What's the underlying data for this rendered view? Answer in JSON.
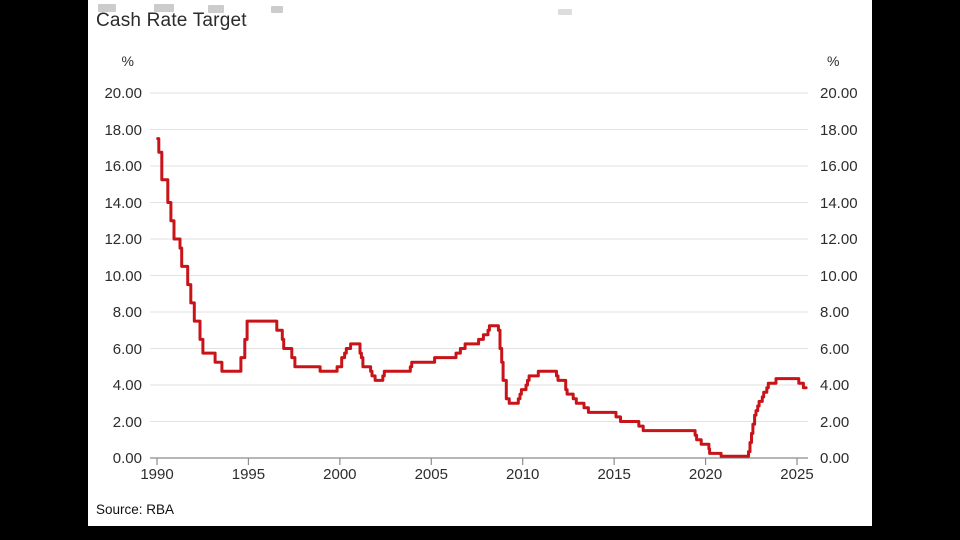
{
  "window": {
    "background_color": "#000000",
    "panel_color": "#ffffff"
  },
  "chart": {
    "title": "Cash Rate Target",
    "unit_left": "%",
    "unit_right": "%",
    "source": "Source: RBA"
  },
  "chart_data": {
    "type": "line",
    "step": "after",
    "title": "Cash Rate Target",
    "xlabel": "",
    "ylabel": "%",
    "xlim": [
      1989.6,
      2025.9
    ],
    "ylim": [
      0,
      20
    ],
    "grid": "horizontal",
    "legend": "none",
    "line_color": "#c81419",
    "grid_color": "#e2e2e2",
    "axis_color": "#8c8c8c",
    "text_color": "#2d2d2d",
    "y_tick_values": [
      20,
      18,
      16,
      14,
      12,
      10,
      8,
      6,
      4,
      2,
      0
    ],
    "y_tick_labels": [
      "20.00",
      "18.00",
      "16.00",
      "14.00",
      "12.00",
      "10.00",
      "8.00",
      "6.00",
      "4.00",
      "2.00",
      "0.00"
    ],
    "x_tick_values": [
      1990,
      1995,
      2000,
      2005,
      2010,
      2015,
      2020,
      2025
    ],
    "x_tick_labels": [
      "1990",
      "1995",
      "2000",
      "2005",
      "2010",
      "2015",
      "2020",
      "2025"
    ],
    "series": [
      {
        "name": "Cash Rate Target (%)",
        "points": [
          [
            1990.04,
            17.5
          ],
          [
            1990.1,
            16.75
          ],
          [
            1990.26,
            15.25
          ],
          [
            1990.59,
            14
          ],
          [
            1990.76,
            13
          ],
          [
            1990.93,
            12
          ],
          [
            1991.26,
            11.5
          ],
          [
            1991.35,
            10.5
          ],
          [
            1991.68,
            9.5
          ],
          [
            1991.85,
            8.5
          ],
          [
            1992.04,
            7.5
          ],
          [
            1992.35,
            6.5
          ],
          [
            1992.51,
            5.75
          ],
          [
            1993.18,
            5.25
          ],
          [
            1993.55,
            4.75
          ],
          [
            1994.59,
            5.5
          ],
          [
            1994.8,
            6.5
          ],
          [
            1994.93,
            7.5
          ],
          [
            1996.55,
            7
          ],
          [
            1996.85,
            6.5
          ],
          [
            1996.93,
            6
          ],
          [
            1997.37,
            5.5
          ],
          [
            1997.54,
            5
          ],
          [
            1998.92,
            4.75
          ],
          [
            1999.85,
            5
          ],
          [
            2000.1,
            5.5
          ],
          [
            2000.26,
            5.75
          ],
          [
            2000.35,
            6
          ],
          [
            2000.59,
            6.25
          ],
          [
            2001.1,
            5.75
          ],
          [
            2001.18,
            5.5
          ],
          [
            2001.26,
            5
          ],
          [
            2001.68,
            4.75
          ],
          [
            2001.76,
            4.5
          ],
          [
            2001.93,
            4.25
          ],
          [
            2002.35,
            4.5
          ],
          [
            2002.43,
            4.75
          ],
          [
            2003.85,
            5
          ],
          [
            2003.93,
            5.25
          ],
          [
            2005.18,
            5.5
          ],
          [
            2006.35,
            5.75
          ],
          [
            2006.59,
            6
          ],
          [
            2006.85,
            6.25
          ],
          [
            2007.59,
            6.5
          ],
          [
            2007.85,
            6.75
          ],
          [
            2008.1,
            7
          ],
          [
            2008.18,
            7.25
          ],
          [
            2008.67,
            7
          ],
          [
            2008.76,
            6
          ],
          [
            2008.85,
            5.25
          ],
          [
            2008.93,
            4.25
          ],
          [
            2009.1,
            3.25
          ],
          [
            2009.26,
            3
          ],
          [
            2009.76,
            3.25
          ],
          [
            2009.85,
            3.5
          ],
          [
            2009.93,
            3.75
          ],
          [
            2010.18,
            4
          ],
          [
            2010.26,
            4.25
          ],
          [
            2010.35,
            4.5
          ],
          [
            2010.85,
            4.75
          ],
          [
            2011.85,
            4.5
          ],
          [
            2011.93,
            4.25
          ],
          [
            2012.35,
            3.75
          ],
          [
            2012.43,
            3.5
          ],
          [
            2012.76,
            3.25
          ],
          [
            2012.93,
            3
          ],
          [
            2013.35,
            2.75
          ],
          [
            2013.59,
            2.5
          ],
          [
            2015.1,
            2.25
          ],
          [
            2015.35,
            2
          ],
          [
            2016.35,
            1.75
          ],
          [
            2016.59,
            1.5
          ],
          [
            2019.43,
            1.25
          ],
          [
            2019.51,
            1
          ],
          [
            2019.76,
            0.75
          ],
          [
            2020.18,
            0.5
          ],
          [
            2020.22,
            0.25
          ],
          [
            2020.85,
            0.1
          ],
          [
            2022.35,
            0.35
          ],
          [
            2022.43,
            0.85
          ],
          [
            2022.51,
            1.35
          ],
          [
            2022.59,
            1.85
          ],
          [
            2022.68,
            2.35
          ],
          [
            2022.76,
            2.6
          ],
          [
            2022.85,
            2.85
          ],
          [
            2022.93,
            3.1
          ],
          [
            2023.1,
            3.35
          ],
          [
            2023.18,
            3.6
          ],
          [
            2023.35,
            3.85
          ],
          [
            2023.43,
            4.1
          ],
          [
            2023.85,
            4.35
          ],
          [
            2025.1,
            4.1
          ],
          [
            2025.35,
            3.85
          ],
          [
            2025.5,
            3.85
          ]
        ]
      }
    ],
    "source": "Source: RBA"
  }
}
